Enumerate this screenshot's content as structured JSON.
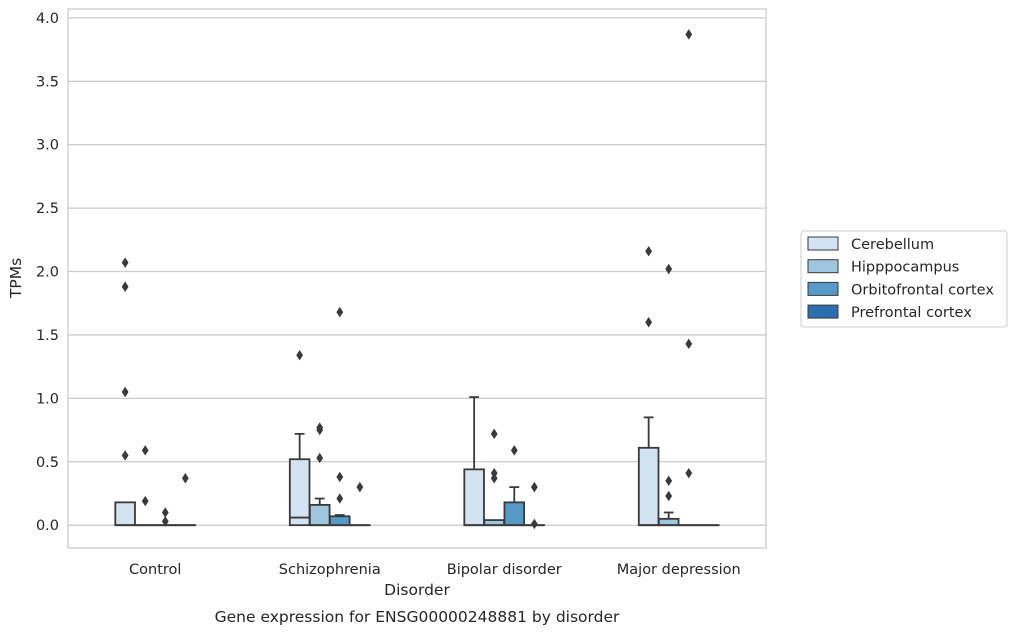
{
  "chart_data": {
    "type": "box",
    "title": "",
    "caption": "Gene expression for ENSG00000248881 by disorder",
    "xlabel": "Disorder",
    "ylabel": "TPMs",
    "ylim": [
      -0.18,
      4.07
    ],
    "yticks": [
      "0.0",
      "0.5",
      "1.0",
      "1.5",
      "2.0",
      "2.5",
      "3.0",
      "3.5",
      "4.0"
    ],
    "grid": "horizontal",
    "legend_position": "right",
    "categories": [
      "Control",
      "Schizophrenia",
      "Bipolar disorder",
      "Major depression"
    ],
    "series": [
      {
        "name": "Cerebellum",
        "color": "#d4e3f1",
        "boxes": [
          {
            "q1": 0.0,
            "median": 0.0,
            "q3": 0.18,
            "whisker_low": 0.0,
            "whisker_high": 0.18,
            "outliers": [
              2.07,
              1.88,
              1.05,
              0.55
            ]
          },
          {
            "q1": 0.0,
            "median": 0.06,
            "q3": 0.52,
            "whisker_low": 0.0,
            "whisker_high": 0.72,
            "outliers": [
              1.34
            ]
          },
          {
            "q1": 0.0,
            "median": 0.0,
            "q3": 0.44,
            "whisker_low": 0.0,
            "whisker_high": 1.01,
            "outliers": []
          },
          {
            "q1": 0.0,
            "median": 0.0,
            "q3": 0.61,
            "whisker_low": 0.0,
            "whisker_high": 0.85,
            "outliers": [
              2.16,
              1.6
            ]
          }
        ]
      },
      {
        "name": "Hipppocampus",
        "color": "#9ec6df",
        "boxes": [
          {
            "q1": 0.0,
            "median": 0.0,
            "q3": 0.0,
            "whisker_low": 0.0,
            "whisker_high": 0.0,
            "outliers": [
              0.59,
              0.19
            ]
          },
          {
            "q1": 0.0,
            "median": 0.0,
            "q3": 0.16,
            "whisker_low": 0.0,
            "whisker_high": 0.21,
            "outliers": [
              0.77,
              0.75,
              0.53
            ]
          },
          {
            "q1": 0.0,
            "median": 0.0,
            "q3": 0.04,
            "whisker_low": 0.0,
            "whisker_high": 0.04,
            "outliers": [
              0.72,
              0.41,
              0.37
            ]
          },
          {
            "q1": 0.0,
            "median": 0.0,
            "q3": 0.05,
            "whisker_low": 0.0,
            "whisker_high": 0.1,
            "outliers": [
              2.02,
              0.35,
              0.23
            ]
          }
        ]
      },
      {
        "name": "Orbitofrontal cortex",
        "color": "#5799c7",
        "boxes": [
          {
            "q1": 0.0,
            "median": 0.0,
            "q3": 0.0,
            "whisker_low": 0.0,
            "whisker_high": 0.0,
            "outliers": [
              0.1,
              0.03
            ]
          },
          {
            "q1": 0.0,
            "median": 0.0,
            "q3": 0.07,
            "whisker_low": 0.0,
            "whisker_high": 0.08,
            "outliers": [
              1.68,
              0.38,
              0.21
            ]
          },
          {
            "q1": 0.0,
            "median": 0.0,
            "q3": 0.18,
            "whisker_low": 0.0,
            "whisker_high": 0.3,
            "outliers": [
              0.59
            ]
          },
          {
            "q1": 0.0,
            "median": 0.0,
            "q3": 0.0,
            "whisker_low": 0.0,
            "whisker_high": 0.0,
            "outliers": [
              3.87,
              1.43,
              0.41
            ]
          }
        ]
      },
      {
        "name": "Prefrontal cortex",
        "color": "#2c6fae",
        "boxes": [
          {
            "q1": 0.0,
            "median": 0.0,
            "q3": 0.0,
            "whisker_low": 0.0,
            "whisker_high": 0.0,
            "outliers": [
              0.37
            ]
          },
          {
            "q1": 0.0,
            "median": 0.0,
            "q3": 0.0,
            "whisker_low": 0.0,
            "whisker_high": 0.0,
            "outliers": [
              0.3
            ]
          },
          {
            "q1": 0.0,
            "median": 0.0,
            "q3": 0.0,
            "whisker_low": 0.0,
            "whisker_high": 0.0,
            "outliers": [
              0.3,
              0.01
            ]
          },
          {
            "q1": 0.0,
            "median": 0.0,
            "q3": 0.0,
            "whisker_low": 0.0,
            "whisker_high": 0.0,
            "outliers": []
          }
        ]
      }
    ]
  }
}
